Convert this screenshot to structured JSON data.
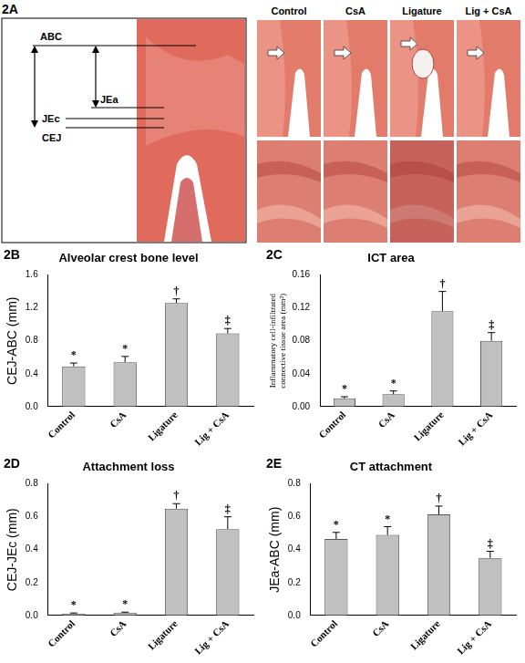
{
  "figure_panel_a": {
    "panel": "2A",
    "schematic_labels": [
      "ABC",
      "JEa",
      "JEc",
      "CEJ"
    ],
    "columns": [
      "Control",
      "CsA",
      "Ligature",
      "Lig + CsA"
    ]
  },
  "chart_data": [
    {
      "panel": "2B",
      "type": "bar",
      "title": "Alveolar crest bone level",
      "y_label": "CEJ-ABC (mm)",
      "categories": [
        "Control",
        "CsA",
        "Ligature",
        "Lig + CsA"
      ],
      "values": [
        0.49,
        0.54,
        1.26,
        0.89
      ],
      "errors": [
        0.04,
        0.07,
        0.05,
        0.06
      ],
      "significance": [
        "*",
        "*",
        "†",
        "‡"
      ],
      "color": "#c0c0c0",
      "ylim": [
        0,
        1.6
      ],
      "yticks": [
        {
          "value": 0,
          "label": "0.0"
        },
        0.4,
        0.8,
        1.2,
        1.6
      ],
      "grid": false
    },
    {
      "panel": "2C",
      "type": "bar",
      "title": "ICT area",
      "y_label": "Inflammatory cell-infiltrated connective tissue area (mm²)",
      "categories": [
        "Control",
        "CsA",
        "Ligature",
        "Lig + CsA"
      ],
      "values": [
        0.01,
        0.015,
        0.116,
        0.08
      ],
      "errors": [
        0.002,
        0.004,
        0.024,
        0.01
      ],
      "significance": [
        "*",
        "*",
        "†",
        "‡"
      ],
      "color": "#c0c0c0",
      "ylim": [
        0,
        0.16
      ],
      "yticks": [
        {
          "value": 0,
          "label": "0.00"
        },
        0.04,
        0.08,
        0.12,
        0.16
      ],
      "grid": false
    },
    {
      "panel": "2D",
      "type": "bar",
      "title": "Attachment loss",
      "y_label": "CEJ-JEc (mm)",
      "categories": [
        "Control",
        "CsA",
        "Ligature",
        "Lig + CsA"
      ],
      "values": [
        0.012,
        0.017,
        0.65,
        0.525
      ],
      "errors": [
        0.003,
        0.003,
        0.03,
        0.075
      ],
      "significance": [
        "*",
        "*",
        "†",
        "‡"
      ],
      "color": "#c0c0c0",
      "ylim": [
        0,
        0.8
      ],
      "yticks": [
        {
          "value": 0,
          "label": "0.0"
        },
        0.2,
        0.4,
        0.6,
        0.8
      ],
      "grid": false
    },
    {
      "panel": "2E",
      "type": "bar",
      "title": "CT attachment",
      "y_label": "JEa-ABC (mm)",
      "categories": [
        "Control",
        "CsA",
        "Ligature",
        "Lig + CsA"
      ],
      "values": [
        0.465,
        0.49,
        0.615,
        0.35
      ],
      "errors": [
        0.04,
        0.05,
        0.05,
        0.04
      ],
      "significance": [
        "*",
        "*",
        "†",
        "‡"
      ],
      "color": "#c0c0c0",
      "ylim": [
        0,
        0.8
      ],
      "yticks": [
        {
          "value": 0,
          "label": "0.0"
        },
        0.2,
        0.4,
        0.6,
        0.8
      ],
      "grid": false
    }
  ]
}
